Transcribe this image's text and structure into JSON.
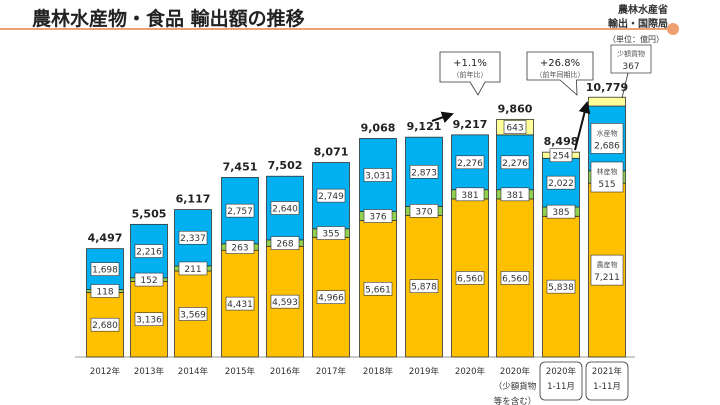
{
  "header": {
    "title": "農林水産物・食品 輸出額の推移",
    "logo_line1": "農林水産省",
    "logo_line2": "輸出・国際局",
    "unit": "（単位：億円）"
  },
  "chart_data": {
    "type": "bar",
    "stacked": true,
    "categories": [
      "2012年",
      "2013年",
      "2014年",
      "2015年",
      "2016年",
      "2017年",
      "2018年",
      "2019年",
      "2020年",
      "2020年\n（少額貨物\n等を含む）",
      "2020年\n1-11月",
      "2021年\n1-11月"
    ],
    "series": [
      {
        "name": "農産物",
        "color": "#FFC000",
        "values": [
          2680,
          3136,
          3569,
          4431,
          4593,
          4966,
          5661,
          5878,
          6560,
          6560,
          5838,
          7211
        ],
        "labels": [
          "2,680",
          "3,136",
          "3,569",
          "4,431",
          "4,593",
          "4,966",
          "5,661",
          "5,878",
          "6,560",
          "6,560",
          "5,838",
          "7,211"
        ]
      },
      {
        "name": "林産物",
        "color": "#92D050",
        "values": [
          118,
          152,
          211,
          263,
          268,
          355,
          376,
          370,
          381,
          381,
          385,
          515
        ],
        "labels": [
          "118",
          "152",
          "211",
          "263",
          "268",
          "355",
          "376",
          "370",
          "381",
          "381",
          "385",
          "515"
        ]
      },
      {
        "name": "水産物",
        "color": "#00B0F0",
        "values": [
          1698,
          2216,
          2337,
          2757,
          2640,
          2749,
          3031,
          2873,
          2276,
          2276,
          2022,
          2686
        ],
        "labels": [
          "1,698",
          "2,216",
          "2,337",
          "2,757",
          "2,640",
          "2,749",
          "3,031",
          "2,873",
          "2,276",
          "2,276",
          "2,022",
          "2,686"
        ]
      },
      {
        "name": "少額貨物",
        "color": "#FFFF99",
        "values": [
          0,
          0,
          0,
          0,
          0,
          0,
          0,
          0,
          0,
          643,
          254,
          367
        ],
        "labels": [
          "",
          "",
          "",
          "",
          "",
          "",
          "",
          "",
          "",
          "643",
          "254",
          "367"
        ]
      }
    ],
    "totals": [
      "4,497",
      "5,505",
      "6,117",
      "7,451",
      "7,502",
      "8,071",
      "9,068",
      "9,121",
      "9,217",
      "9,860",
      "8,498",
      "10,779"
    ],
    "annotations": [
      {
        "text": "+1.1%",
        "sub": "（前年比）"
      },
      {
        "text": "+26.8%",
        "sub": "（前年同期比）"
      }
    ],
    "ylim": [
      0,
      11000
    ],
    "grid": false,
    "legend": "none"
  }
}
